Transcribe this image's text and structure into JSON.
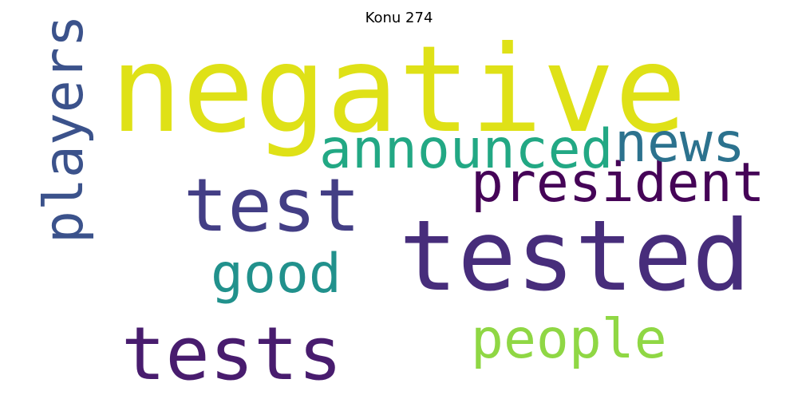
{
  "figure": {
    "title": "Konu 274"
  },
  "words": [
    {
      "key": "negative",
      "text": "negative",
      "color": "#dfe117"
    },
    {
      "key": "tested",
      "text": "tested",
      "color": "#472d7b"
    },
    {
      "key": "test",
      "text": "test",
      "color": "#433e85"
    },
    {
      "key": "tests",
      "text": "tests",
      "color": "#481c6e"
    },
    {
      "key": "announced",
      "text": "announced",
      "color": "#22a884"
    },
    {
      "key": "president",
      "text": "president",
      "color": "#450457"
    },
    {
      "key": "news",
      "text": "news",
      "color": "#2c728e"
    },
    {
      "key": "good",
      "text": "good",
      "color": "#21918c"
    },
    {
      "key": "people",
      "text": "people",
      "color": "#8fd744"
    },
    {
      "key": "players",
      "text": "players",
      "color": "#3b528b",
      "orientation": "vertical"
    }
  ]
}
